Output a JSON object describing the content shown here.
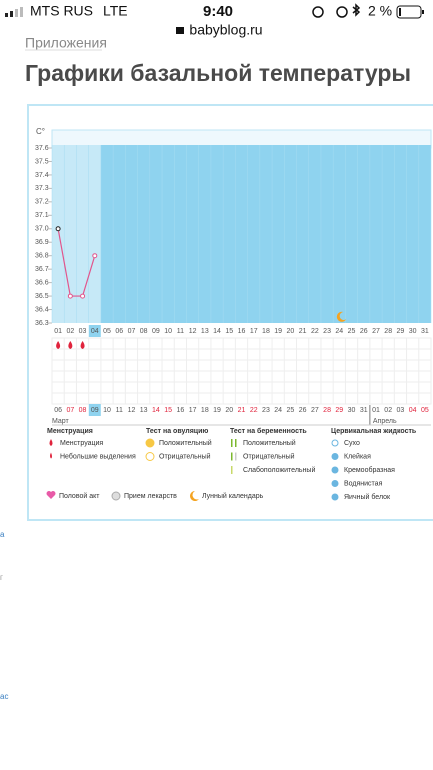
{
  "status_bar": {
    "carrier": "MTS RUS",
    "network": "LTE",
    "time": "9:40",
    "battery": "2 %"
  },
  "url": "babyblog.ru",
  "breadcrumb": "Приложения",
  "title": "Графики базальной температуры",
  "sidebar": [
    "а",
    "г",
    "ас"
  ],
  "chart_data": {
    "type": "line",
    "y_label": "C°",
    "categories": [
      "01",
      "02",
      "03",
      "04",
      "05",
      "06",
      "07",
      "08",
      "09",
      "10",
      "11",
      "12",
      "13",
      "14",
      "15",
      "16",
      "17",
      "18",
      "19",
      "20",
      "21",
      "22",
      "23",
      "24",
      "25",
      "26",
      "27",
      "28",
      "29",
      "30",
      "31"
    ],
    "dates": [
      "06",
      "07",
      "08",
      "09",
      "10",
      "11",
      "12",
      "13",
      "14",
      "15",
      "16",
      "17",
      "18",
      "19",
      "20",
      "21",
      "22",
      "23",
      "24",
      "25",
      "26",
      "27",
      "28",
      "29",
      "30",
      "31",
      "01",
      "02",
      "03",
      "04",
      "05"
    ],
    "months": [
      "Март",
      "Апрель"
    ],
    "series": [
      {
        "color": "#e2558c",
        "values": [
          37.0,
          36.5,
          36.5,
          36.8,
          null,
          null,
          null,
          null,
          null,
          null,
          null,
          null,
          null,
          null,
          null,
          null,
          null,
          null,
          null,
          null,
          null,
          null,
          null,
          null,
          null,
          null,
          null,
          null,
          null,
          null,
          null
        ]
      }
    ],
    "ylim": [
      36.3,
      37.6
    ],
    "yticks": [
      36.3,
      36.4,
      36.5,
      36.6,
      36.7,
      36.8,
      36.9,
      {
        "value": 37,
        "label": "37.0"
      },
      37.1,
      37.2,
      37.3,
      37.4,
      37.5,
      37.6
    ],
    "grid": true,
    "legend": {
      "groups": [
        {
          "title": "Менструация",
          "items": [
            "Менструация",
            "Небольшие выделения"
          ]
        },
        {
          "title": "Тест на овуляцию",
          "items": [
            "Положительный",
            "Отрицательный"
          ]
        },
        {
          "title": "Тест на беременность",
          "items": [
            "Положительный",
            "Отрицательный",
            "Слабоположительный"
          ]
        },
        {
          "title": "Цервикальная жидкость",
          "items": [
            "Сухо",
            "Клейкая",
            "Кремообразная",
            "Водянистая",
            "Яичный белок"
          ]
        }
      ],
      "extra": [
        "Половой акт",
        "Прием лекарств",
        "Лунный календарь"
      ]
    }
  }
}
